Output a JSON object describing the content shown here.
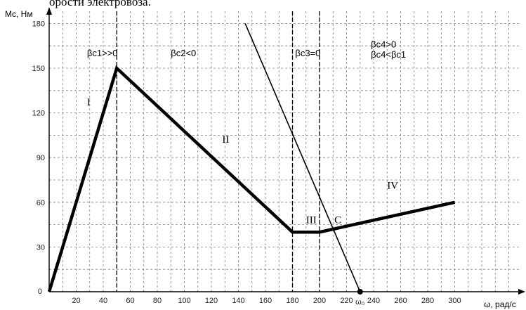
{
  "page": {
    "title_fragment": "орости электровоза."
  },
  "chart_data": {
    "type": "line",
    "xlabel": "ω, рад/с",
    "ylabel": "Mc, Нм",
    "xlim": [
      0,
      350
    ],
    "ylim": [
      0,
      180
    ],
    "x_ticks": [
      20,
      40,
      60,
      80,
      100,
      120,
      140,
      160,
      180,
      200,
      220,
      240,
      260,
      280,
      300
    ],
    "y_ticks": [
      30,
      60,
      90,
      120,
      150,
      180
    ],
    "x_special_tick": {
      "x": 230,
      "label": "ω₀"
    },
    "grid": true,
    "series": [
      {
        "points": [
          [
            0,
            0
          ],
          [
            50,
            150
          ],
          [
            180,
            40
          ],
          [
            200,
            40
          ],
          [
            300,
            60
          ]
        ]
      },
      {
        "points": [
          [
            145,
            180
          ],
          [
            230,
            0
          ]
        ]
      }
    ],
    "vertical_lines": [
      50,
      180,
      200
    ],
    "region_labels": [
      {
        "text": "I",
        "x": 28,
        "y": 125
      },
      {
        "text": "II",
        "x": 128,
        "y": 100
      },
      {
        "text": "III",
        "x": 190,
        "y": 46
      },
      {
        "text": "IV",
        "x": 250,
        "y": 69
      },
      {
        "text": "C",
        "x": 211,
        "y": 46
      }
    ],
    "beta_labels": [
      {
        "text": "βc1>>0",
        "x": 28,
        "y": 158
      },
      {
        "text": "βc2<0",
        "x": 90,
        "y": 158
      },
      {
        "text": "βc3=0",
        "x": 182,
        "y": 158
      },
      {
        "text": "βc4>0",
        "x": 238,
        "y": 164
      },
      {
        "text": "βc4<βc1",
        "x": 238,
        "y": 157
      }
    ]
  }
}
